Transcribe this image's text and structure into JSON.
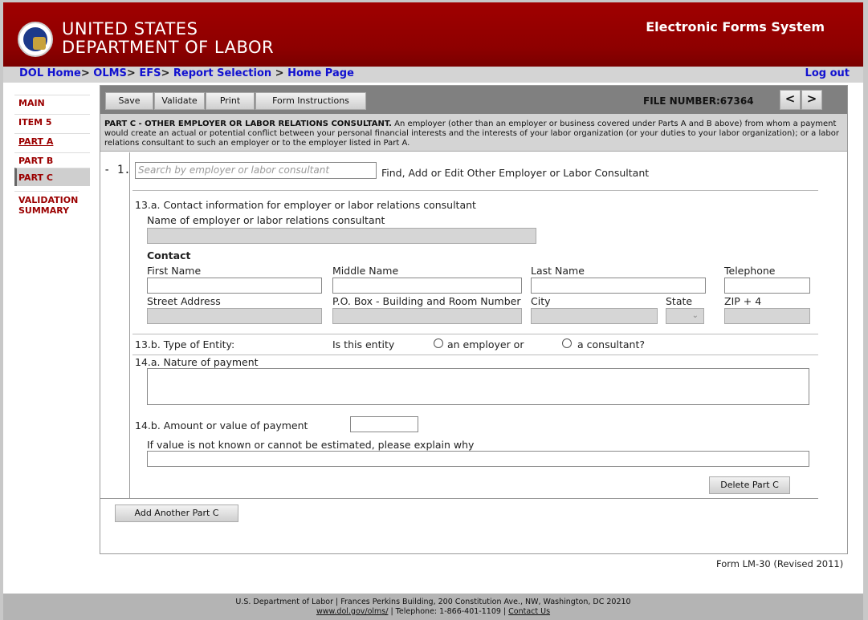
{
  "header": {
    "org_line1": "UNITED STATES",
    "org_line2": "DEPARTMENT OF LABOR",
    "system_title": "Electronic Forms System",
    "seal_text": "U.S. Department of Labor seal"
  },
  "breadcrumb": {
    "items": [
      "DOL Home",
      "OLMS",
      "EFS",
      "Report Selection",
      "Home Page"
    ],
    "sep": ">",
    "logout": "Log out"
  },
  "sidebar": {
    "items": [
      {
        "label": "MAIN"
      },
      {
        "label": "ITEM 5"
      },
      {
        "label": "PART A"
      },
      {
        "label": "PART B"
      },
      {
        "label": "PART C",
        "active": true
      },
      {
        "label": "VALIDATION SUMMARY"
      }
    ]
  },
  "toolbar": {
    "save": "Save",
    "validate": "Validate",
    "print": "Print",
    "instructions": "Form Instructions",
    "file_number": "FILE NUMBER:67364",
    "prev": "<",
    "next": ">"
  },
  "section": {
    "title": "PART C - OTHER EMPLOYER OR LABOR RELATIONS CONSULTANT.",
    "text": " An employer (other than an employer or business covered under Parts A and B above) from whom a payment would create an actual or potential conflict between your personal financial interests and the interests of your labor organization   (or your duties to your labor organization);  or a labor relations consultant to such an employer or to the employer listed in Part A."
  },
  "entry": {
    "number": "- 1.",
    "search_placeholder": "Search by employer or labor consultant",
    "search_hint": "Find, Add or Edit Other Employer or Labor Consultant"
  },
  "form": {
    "q13a": "13.a. Contact information for employer or labor relations consultant",
    "name_label": "Name of employer or labor relations consultant",
    "contact_heading": "Contact",
    "first_name": "First Name",
    "middle_name": "Middle Name",
    "last_name": "Last Name",
    "telephone": "Telephone",
    "street": "Street Address",
    "pobox": "P.O. Box - Building and Room Number",
    "city": "City",
    "state": "State",
    "zip": "ZIP + 4",
    "q13b": "13.b. Type of Entity:",
    "is_entity": "Is this entity",
    "opt_employer": "an employer or",
    "opt_consultant": "a consultant?",
    "q14a": "14.a. Nature of payment",
    "q14b": "14.b. Amount or value of payment",
    "explain": "If value is not known or cannot be estimated, please explain why",
    "delete": "Delete Part C",
    "add_another": "Add Another Part C"
  },
  "form_id": "Form LM-30 (Revised 2011)",
  "footer": {
    "line1": "U.S. Department of Labor | Frances Perkins Building, 200 Constitution Ave., NW, Washington, DC 20210",
    "url": "www.dol.gov/olms/",
    "phone": " | Telephone: 1-866-401-1109 | ",
    "contact": "Contact Us"
  }
}
